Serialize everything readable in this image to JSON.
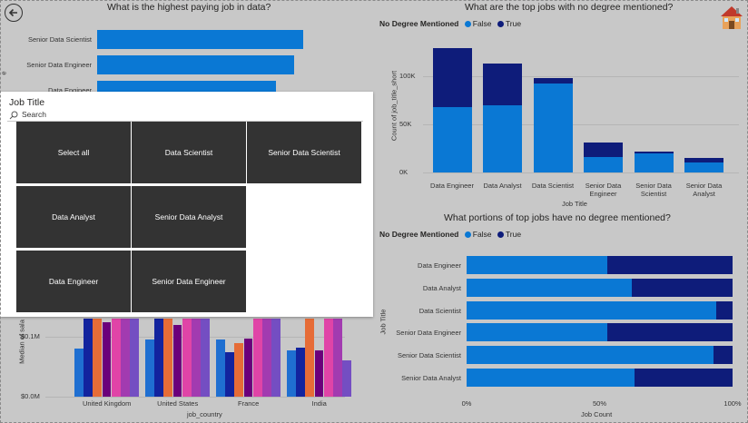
{
  "nav": {
    "back_icon": "back-arrow-icon",
    "home_icon": "home-icon"
  },
  "top_left": {
    "title": "What is the highest paying job in data?",
    "ylabel_fragment": "e",
    "bars": [
      {
        "label": "Senior Data Scientist",
        "value": 1
      },
      {
        "label": "Senior Data Engineer",
        "value": 0.955
      },
      {
        "label": "Data Engineer",
        "value": 0.87
      }
    ]
  },
  "slicer": {
    "title": "Job Title",
    "search_placeholder": "Search",
    "options": [
      "Select all",
      "Data Scientist",
      "Senior Data Scientist",
      "Data Analyst",
      "Senior Data Analyst",
      "Data Engineer",
      "Senior Data Engineer"
    ]
  },
  "top_right": {
    "title": "What are the top jobs with no degree mentioned?",
    "legend_title": "No Degree Mentioned",
    "legend": [
      "False",
      "True"
    ],
    "ylabel": "Count of job_title_short",
    "xlabel": "Job Title",
    "yticks": [
      "100K",
      "50K",
      "0K"
    ]
  },
  "bottom_right": {
    "title": "What portions of top jobs have no degree mentioned?",
    "legend_title": "No Degree Mentioned",
    "legend": [
      "False",
      "True"
    ],
    "ylabel": "Job Title",
    "xlabel": "Job Count",
    "xticks": [
      "0%",
      "50%",
      "100%"
    ]
  },
  "bottom_left": {
    "ylabel": "Median of sala",
    "xlabel": "job_country",
    "yticks": [
      "$0.1M",
      "$0.0M"
    ],
    "countries": [
      "United Kingdom",
      "United States",
      "France",
      "India"
    ]
  },
  "colors": {
    "false": "#118DFF",
    "false_render": "#0a78d4",
    "true": "#12239E",
    "true_render": "#0e1c7a"
  },
  "chart_data": [
    {
      "type": "bar",
      "title": "What are the top jobs with no degree mentioned?",
      "xlabel": "Job Title",
      "ylabel": "Count of job_title_short",
      "categories": [
        "Data Engineer",
        "Data Analyst",
        "Data Scientist",
        "Senior Data Engineer",
        "Senior Data Scientist",
        "Senior Data Analyst"
      ],
      "series": [
        {
          "name": "False",
          "values": [
            68000,
            70000,
            92000,
            16000,
            20000,
            10000
          ]
        },
        {
          "name": "True",
          "values": [
            61000,
            43000,
            6000,
            15000,
            1500,
            5000
          ]
        }
      ],
      "ylim": [
        0,
        130000
      ]
    },
    {
      "type": "bar",
      "title": "What portions of top jobs have no degree mentioned?",
      "xlabel": "Job Count",
      "ylabel": "Job Title",
      "categories": [
        "Data Engineer",
        "Data Analyst",
        "Data Scientist",
        "Senior Data Engineer",
        "Senior Data Scientist",
        "Senior Data Analyst"
      ],
      "series": [
        {
          "name": "False",
          "values": [
            0.53,
            0.62,
            0.94,
            0.53,
            0.93,
            0.63
          ]
        },
        {
          "name": "True",
          "values": [
            0.47,
            0.38,
            0.06,
            0.47,
            0.07,
            0.37
          ]
        }
      ],
      "xlim": [
        0,
        1
      ]
    },
    {
      "type": "bar",
      "xlabel": "job_country",
      "ylabel": "Median of sala",
      "categories": [
        "United Kingdom",
        "United States",
        "France",
        "India"
      ],
      "series": [
        {
          "values": [
            0.08,
            0.095,
            0.095,
            0.077
          ]
        },
        {
          "values": [
            0.13,
            0.13,
            0.075,
            0.082
          ]
        },
        {
          "values": [
            0.13,
            0.13,
            0.09,
            0.13
          ]
        },
        {
          "values": [
            0.125,
            0.12,
            0.097,
            0.077
          ]
        },
        {
          "values": [
            0.13,
            0.13,
            0.13,
            0.13
          ]
        },
        {
          "values": [
            0.13,
            0.13,
            0.13,
            0.13
          ]
        },
        {
          "values": [
            0.13,
            0.13,
            0.13,
            0.06
          ]
        }
      ],
      "yticks": [
        "$0.1M",
        "$0.0M"
      ]
    }
  ]
}
